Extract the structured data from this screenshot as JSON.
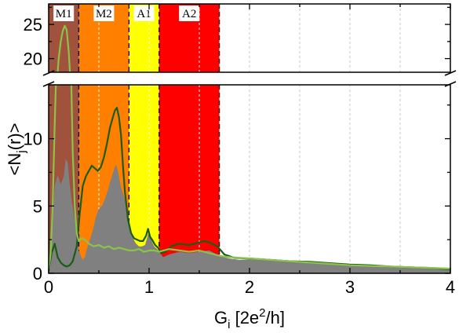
{
  "chart_data": {
    "type": "area",
    "xlabel": {
      "main": "G",
      "sub": "i",
      "rest": " [2e",
      "sup": "2",
      "end": "/h]"
    },
    "ylabel": {
      "main": "<N",
      "sub": "j",
      "rest": "(r)>"
    },
    "xlim": [
      0,
      4
    ],
    "ylim_lower": [
      0,
      14
    ],
    "ylim_upper": [
      18,
      28
    ],
    "axis_break": true,
    "x_ticks": [
      "0",
      "1",
      "2",
      "3",
      "4"
    ],
    "y_ticks_lower": [
      "0",
      "5",
      "10"
    ],
    "y_ticks_upper": [
      "20",
      "25"
    ],
    "regions": [
      {
        "label": "M1",
        "x0": 0.0,
        "x1": 0.3,
        "color": "#a0523c"
      },
      {
        "label": "M2",
        "x0": 0.3,
        "x1": 0.8,
        "color": "#ff8000"
      },
      {
        "label": "A1",
        "x0": 0.8,
        "x1": 1.1,
        "color": "#ffff00"
      },
      {
        "label": "A2",
        "x0": 1.1,
        "x1": 1.7,
        "color": "#ff0000"
      }
    ],
    "grid_lines_x": [
      0.5,
      1.0,
      1.5,
      2.0,
      2.5,
      3.0,
      3.5
    ],
    "series": [
      {
        "style": "filled-area",
        "color": "#808080",
        "points": [
          [
            0.0,
            0.2
          ],
          [
            0.03,
            3.0
          ],
          [
            0.06,
            6.5
          ],
          [
            0.09,
            7.3
          ],
          [
            0.12,
            6.6
          ],
          [
            0.15,
            7.2
          ],
          [
            0.17,
            8.5
          ],
          [
            0.19,
            8.2
          ],
          [
            0.21,
            6.6
          ],
          [
            0.23,
            5.4
          ],
          [
            0.26,
            4.0
          ],
          [
            0.28,
            2.5
          ],
          [
            0.3,
            1.7
          ],
          [
            0.32,
            1.3
          ],
          [
            0.34,
            1.0
          ],
          [
            0.36,
            1.2
          ],
          [
            0.38,
            1.8
          ],
          [
            0.41,
            2.5
          ],
          [
            0.44,
            3.2
          ],
          [
            0.47,
            4.2
          ],
          [
            0.5,
            4.8
          ],
          [
            0.53,
            5.0
          ],
          [
            0.56,
            5.5
          ],
          [
            0.59,
            6.2
          ],
          [
            0.62,
            7.0
          ],
          [
            0.65,
            7.7
          ],
          [
            0.67,
            8.1
          ],
          [
            0.69,
            7.6
          ],
          [
            0.72,
            6.4
          ],
          [
            0.75,
            5.7
          ],
          [
            0.78,
            4.8
          ],
          [
            0.81,
            3.5
          ],
          [
            0.84,
            2.6
          ],
          [
            0.87,
            2.2
          ],
          [
            0.9,
            2.0
          ],
          [
            0.93,
            2.0
          ],
          [
            0.96,
            2.1
          ],
          [
            0.98,
            2.6
          ],
          [
            1.0,
            3.2
          ],
          [
            1.02,
            2.5
          ],
          [
            1.05,
            2.0
          ],
          [
            1.08,
            1.8
          ],
          [
            1.11,
            1.5
          ],
          [
            1.14,
            1.2
          ],
          [
            1.2,
            1.4
          ],
          [
            1.3,
            1.6
          ],
          [
            1.4,
            1.5
          ],
          [
            1.5,
            1.6
          ],
          [
            1.6,
            1.7
          ],
          [
            1.7,
            1.3
          ],
          [
            1.8,
            1.1
          ],
          [
            1.9,
            1.0
          ],
          [
            2.0,
            1.05
          ],
          [
            2.2,
            0.95
          ],
          [
            2.4,
            0.85
          ],
          [
            2.6,
            0.75
          ],
          [
            2.8,
            0.7
          ],
          [
            3.0,
            0.6
          ],
          [
            3.2,
            0.55
          ],
          [
            3.4,
            0.5
          ],
          [
            3.6,
            0.45
          ],
          [
            3.8,
            0.4
          ],
          [
            4.0,
            0.35
          ]
        ]
      },
      {
        "style": "line",
        "color": "#1a5c14",
        "points": [
          [
            0.0,
            0.2
          ],
          [
            0.03,
            1.5
          ],
          [
            0.06,
            2.2
          ],
          [
            0.09,
            1.2
          ],
          [
            0.12,
            0.8
          ],
          [
            0.15,
            0.6
          ],
          [
            0.18,
            0.5
          ],
          [
            0.21,
            0.6
          ],
          [
            0.24,
            0.9
          ],
          [
            0.28,
            2.0
          ],
          [
            0.31,
            4.5
          ],
          [
            0.34,
            6.5
          ],
          [
            0.37,
            7.2
          ],
          [
            0.4,
            7.6
          ],
          [
            0.43,
            8.0
          ],
          [
            0.46,
            7.8
          ],
          [
            0.49,
            7.6
          ],
          [
            0.52,
            7.9
          ],
          [
            0.55,
            8.6
          ],
          [
            0.58,
            9.6
          ],
          [
            0.61,
            10.8
          ],
          [
            0.64,
            11.6
          ],
          [
            0.66,
            12.1
          ],
          [
            0.68,
            12.3
          ],
          [
            0.7,
            11.6
          ],
          [
            0.72,
            10.3
          ],
          [
            0.74,
            8.0
          ],
          [
            0.76,
            6.0
          ],
          [
            0.79,
            4.0
          ],
          [
            0.82,
            3.0
          ],
          [
            0.85,
            2.6
          ],
          [
            0.88,
            2.5
          ],
          [
            0.91,
            2.4
          ],
          [
            0.94,
            2.4
          ],
          [
            0.97,
            2.8
          ],
          [
            0.99,
            3.3
          ],
          [
            1.01,
            2.7
          ],
          [
            1.03,
            2.5
          ],
          [
            1.06,
            2.1
          ],
          [
            1.09,
            1.9
          ],
          [
            1.12,
            1.5
          ],
          [
            1.16,
            1.6
          ],
          [
            1.22,
            2.0
          ],
          [
            1.3,
            2.2
          ],
          [
            1.4,
            2.1
          ],
          [
            1.45,
            2.2
          ],
          [
            1.5,
            2.3
          ],
          [
            1.55,
            2.4
          ],
          [
            1.6,
            2.3
          ],
          [
            1.68,
            2.0
          ],
          [
            1.75,
            1.4
          ],
          [
            1.85,
            1.15
          ],
          [
            2.0,
            1.1
          ],
          [
            2.2,
            1.0
          ],
          [
            2.4,
            0.9
          ],
          [
            2.6,
            0.85
          ],
          [
            2.8,
            0.75
          ],
          [
            3.0,
            0.65
          ],
          [
            3.2,
            0.6
          ],
          [
            3.4,
            0.5
          ],
          [
            3.6,
            0.45
          ],
          [
            3.8,
            0.4
          ],
          [
            4.0,
            0.3
          ]
        ]
      },
      {
        "style": "line",
        "color": "#8bc34a",
        "points": [
          [
            0.0,
            0.3
          ],
          [
            0.02,
            1.5
          ],
          [
            0.04,
            5.0
          ],
          [
            0.06,
            11.0
          ],
          [
            0.08,
            16.0
          ],
          [
            0.1,
            20.0
          ],
          [
            0.12,
            22.5
          ],
          [
            0.14,
            24.0
          ],
          [
            0.16,
            24.8
          ],
          [
            0.18,
            24.2
          ],
          [
            0.2,
            21.0
          ],
          [
            0.22,
            16.0
          ],
          [
            0.24,
            9.0
          ],
          [
            0.26,
            5.0
          ],
          [
            0.28,
            3.0
          ],
          [
            0.3,
            2.4
          ],
          [
            0.33,
            2.6
          ],
          [
            0.36,
            2.5
          ],
          [
            0.4,
            2.2
          ],
          [
            0.45,
            2.0
          ],
          [
            0.5,
            2.1
          ],
          [
            0.55,
            1.9
          ],
          [
            0.6,
            2.0
          ],
          [
            0.65,
            1.8
          ],
          [
            0.7,
            1.9
          ],
          [
            0.75,
            1.8
          ],
          [
            0.8,
            1.7
          ],
          [
            0.85,
            1.7
          ],
          [
            0.9,
            1.8
          ],
          [
            0.95,
            1.6
          ],
          [
            1.0,
            1.7
          ],
          [
            1.05,
            1.7
          ],
          [
            1.1,
            1.6
          ],
          [
            1.2,
            1.8
          ],
          [
            1.3,
            1.7
          ],
          [
            1.4,
            1.6
          ],
          [
            1.5,
            1.7
          ],
          [
            1.6,
            1.5
          ],
          [
            1.7,
            1.3
          ],
          [
            1.8,
            1.2
          ],
          [
            2.0,
            1.1
          ],
          [
            2.2,
            1.0
          ],
          [
            2.4,
            0.9
          ],
          [
            2.6,
            0.8
          ],
          [
            2.8,
            0.7
          ],
          [
            3.0,
            0.6
          ],
          [
            3.2,
            0.55
          ],
          [
            3.4,
            0.5
          ],
          [
            3.6,
            0.45
          ],
          [
            3.8,
            0.4
          ],
          [
            4.0,
            0.35
          ]
        ]
      }
    ]
  }
}
